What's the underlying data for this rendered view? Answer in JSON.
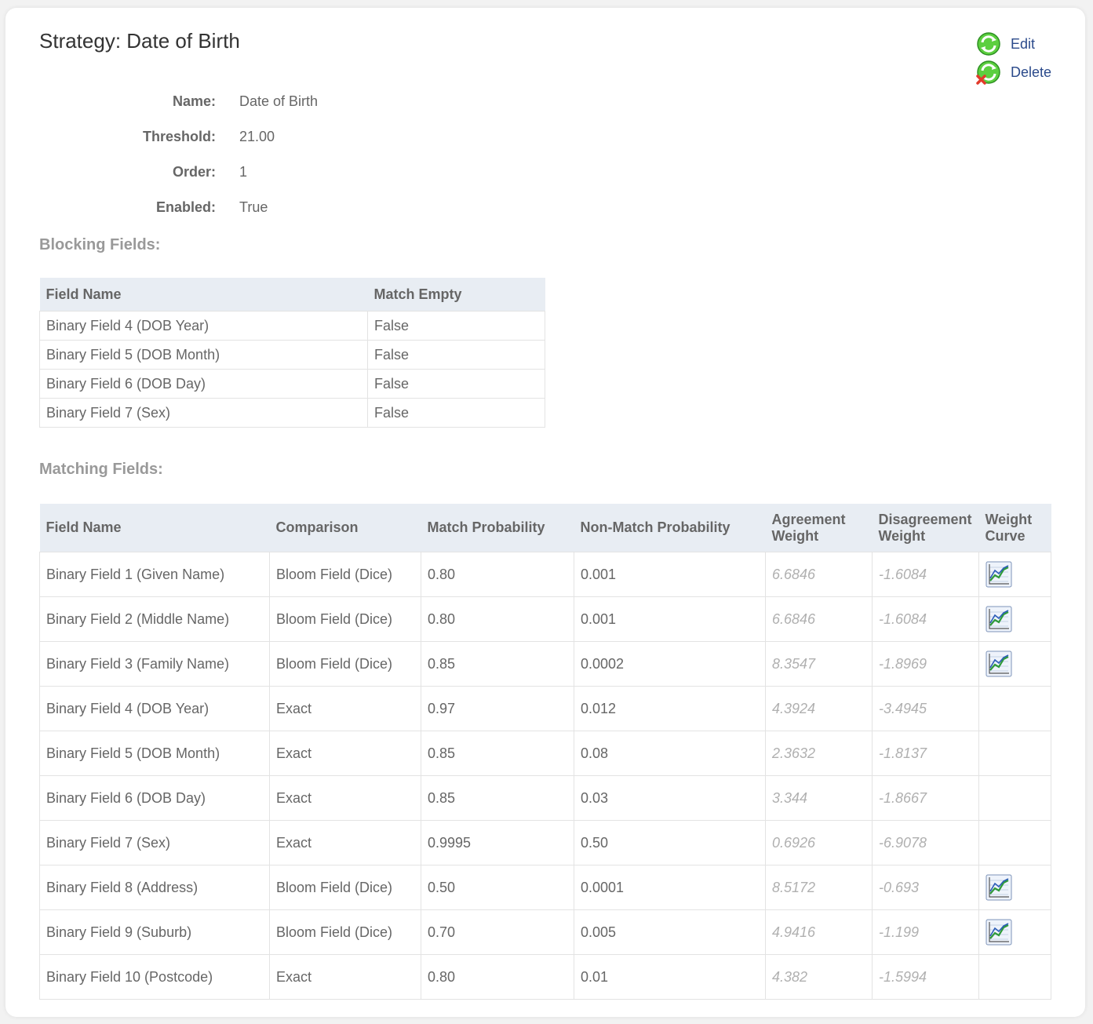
{
  "page": {
    "title": "Strategy: Date of Birth"
  },
  "actions": {
    "edit_label": "Edit",
    "delete_label": "Delete",
    "edit_icon": "edit-refresh-icon",
    "delete_icon": "delete-refresh-icon"
  },
  "properties": [
    {
      "label": "Name:",
      "value": "Date of Birth"
    },
    {
      "label": "Threshold:",
      "value": "21.00"
    },
    {
      "label": "Order:",
      "value": "1"
    },
    {
      "label": "Enabled:",
      "value": "True"
    }
  ],
  "blocking": {
    "heading": "Blocking Fields:",
    "columns": [
      "Field Name",
      "Match Empty"
    ],
    "rows": [
      {
        "field": "Binary Field 4 (DOB Year)",
        "match_empty": "False"
      },
      {
        "field": "Binary Field 5 (DOB Month)",
        "match_empty": "False"
      },
      {
        "field": "Binary Field 6 (DOB Day)",
        "match_empty": "False"
      },
      {
        "field": "Binary Field 7 (Sex)",
        "match_empty": "False"
      }
    ]
  },
  "matching": {
    "heading": "Matching Fields:",
    "columns": [
      "Field Name",
      "Comparison",
      "Match Probability",
      "Non-Match Probability",
      "Agreement Weight",
      "Disagreement Weight",
      "Weight Curve"
    ],
    "rows": [
      {
        "field": "Binary Field 1 (Given Name)",
        "comparison": "Bloom Field (Dice)",
        "match_prob": "0.80",
        "nonmatch_prob": "0.001",
        "agreement": "6.6846",
        "disagreement": "-1.6084",
        "curve": true
      },
      {
        "field": "Binary Field 2 (Middle Name)",
        "comparison": "Bloom Field (Dice)",
        "match_prob": "0.80",
        "nonmatch_prob": "0.001",
        "agreement": "6.6846",
        "disagreement": "-1.6084",
        "curve": true
      },
      {
        "field": "Binary Field 3 (Family Name)",
        "comparison": "Bloom Field (Dice)",
        "match_prob": "0.85",
        "nonmatch_prob": "0.0002",
        "agreement": "8.3547",
        "disagreement": "-1.8969",
        "curve": true
      },
      {
        "field": "Binary Field 4 (DOB Year)",
        "comparison": "Exact",
        "match_prob": "0.97",
        "nonmatch_prob": "0.012",
        "agreement": "4.3924",
        "disagreement": "-3.4945",
        "curve": false
      },
      {
        "field": "Binary Field 5 (DOB Month)",
        "comparison": "Exact",
        "match_prob": "0.85",
        "nonmatch_prob": "0.08",
        "agreement": "2.3632",
        "disagreement": "-1.8137",
        "curve": false
      },
      {
        "field": "Binary Field 6 (DOB Day)",
        "comparison": "Exact",
        "match_prob": "0.85",
        "nonmatch_prob": "0.03",
        "agreement": "3.344",
        "disagreement": "-1.8667",
        "curve": false
      },
      {
        "field": "Binary Field 7 (Sex)",
        "comparison": "Exact",
        "match_prob": "0.9995",
        "nonmatch_prob": "0.50",
        "agreement": "0.6926",
        "disagreement": "-6.9078",
        "curve": false
      },
      {
        "field": "Binary Field 8 (Address)",
        "comparison": "Bloom Field (Dice)",
        "match_prob": "0.50",
        "nonmatch_prob": "0.0001",
        "agreement": "8.5172",
        "disagreement": "-0.693",
        "curve": true
      },
      {
        "field": "Binary Field 9 (Suburb)",
        "comparison": "Bloom Field (Dice)",
        "match_prob": "0.70",
        "nonmatch_prob": "0.005",
        "agreement": "4.9416",
        "disagreement": "-1.199",
        "curve": true
      },
      {
        "field": "Binary Field 10 (Postcode)",
        "comparison": "Exact",
        "match_prob": "0.80",
        "nonmatch_prob": "0.01",
        "agreement": "4.382",
        "disagreement": "-1.5994",
        "curve": false
      }
    ]
  },
  "colors": {
    "link": "#2b4a8b",
    "header_bg": "#e8edf3",
    "weight_text": "#b0b0b0",
    "icon_green": "#3cb43c",
    "icon_red": "#e23a2a"
  },
  "icons": {
    "weight_curve": "line-chart-icon"
  }
}
